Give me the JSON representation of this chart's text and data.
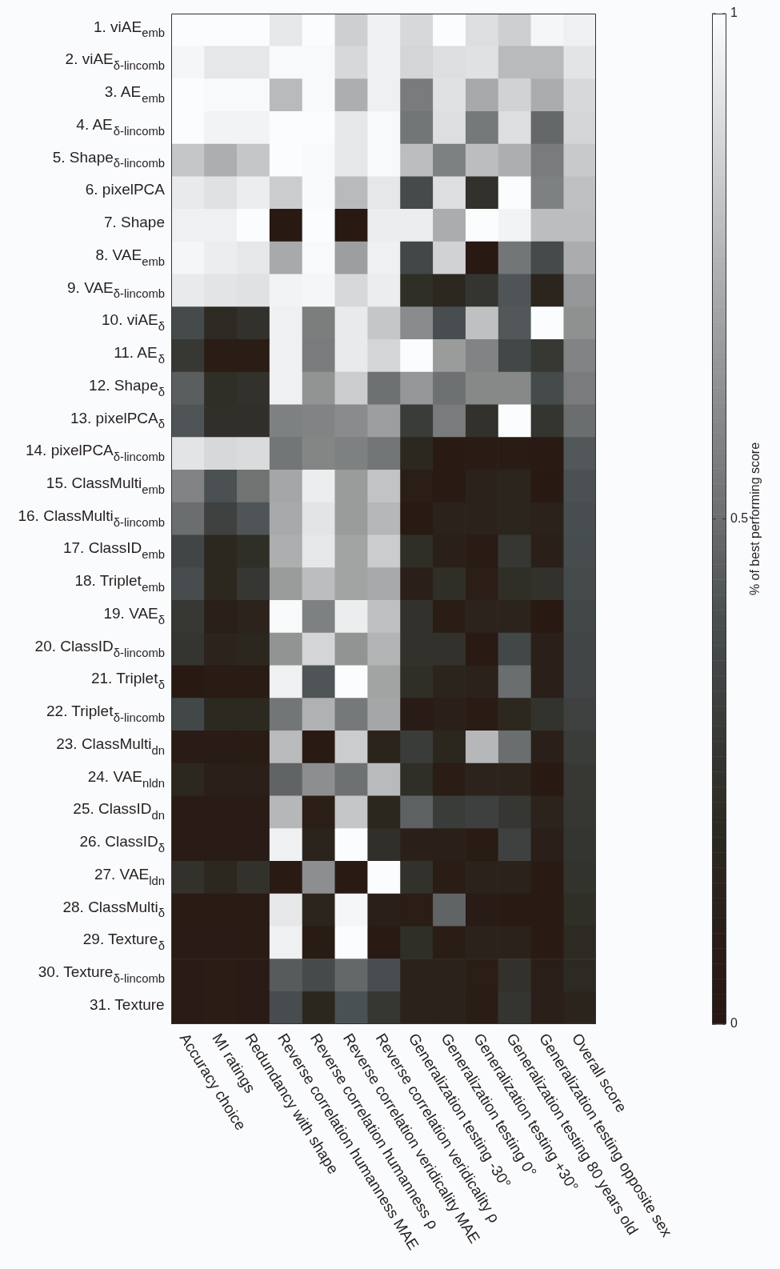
{
  "chart_data": {
    "type": "heatmap",
    "clabel": "% of best performing score",
    "clim": [
      0,
      1
    ],
    "cticks": [
      0,
      0.5,
      1
    ],
    "categories": [
      "Accuracy choice",
      "MI ratings",
      "Redundancy with shape",
      "Reverse correlation humanness MAE",
      "Reverse correlation humanness ρ",
      "Reverse correlation veridicality MAE",
      "Reverse correlation veridicality ρ",
      "Generalization testing -30°",
      "Generalization testing 0°",
      "Generalization testing +30°",
      "Generalization testing 80 years old",
      "Generalization testing opposite sex",
      "Overall score"
    ],
    "y_categories": [
      "1. viAE$_{emb}$",
      "2. viAE$_{δ-lincomb}$",
      "3. AE$_{emb}$",
      "4. AE$_{δ-lincomb}$",
      "5. Shape$_{δ-lincomb}$",
      "6. pixelPCA",
      "7. Shape",
      "8. VAE$_{emb}$",
      "9. VAE$_{δ-lincomb}$",
      "10. viAE$_{δ}$",
      "11. AE$_{δ}$",
      "12. Shape$_{δ}$",
      "13. pixelPCA$_{δ}$",
      "14. pixelPCA$_{δ-lincomb}$",
      "15. ClassMulti$_{emb}$",
      "16. ClassMulti$_{δ-lincomb}$",
      "17. ClassID$_{emb}$",
      "18. Triplet$_{emb}$",
      "19. VAE$_{δ}$",
      "20. ClassID$_{δ-lincomb}$",
      "21. Triplet$_{δ}$",
      "22. Triplet$_{δ-lincomb}$",
      "23. ClassMulti$_{dn}$",
      "24. VAE$_{nldn}$",
      "25. ClassID$_{dn}$",
      "26. ClassID$_{δ}$",
      "27. VAE$_{ldn}$",
      "28. ClassMulti$_{δ}$",
      "29. Texture$_{δ}$",
      "30. Texture$_{δ-lincomb}$",
      "31. Texture"
    ],
    "cells": [
      [
        1,
        1,
        1,
        0.93,
        1,
        0.85,
        0.96,
        0.88,
        1,
        0.9,
        0.85,
        0.98,
        0.96
      ],
      [
        0.98,
        0.93,
        0.93,
        0.99,
        0.99,
        0.88,
        0.96,
        0.87,
        0.9,
        0.91,
        0.78,
        0.78,
        0.92
      ],
      [
        1,
        0.99,
        0.99,
        0.78,
        0.99,
        0.74,
        0.96,
        0.55,
        0.91,
        0.72,
        0.86,
        0.73,
        0.88
      ],
      [
        1,
        0.97,
        0.97,
        1,
        1,
        0.93,
        0.99,
        0.53,
        0.9,
        0.54,
        0.9,
        0.48,
        0.87
      ],
      [
        0.82,
        0.74,
        0.82,
        1,
        0.99,
        0.93,
        0.99,
        0.79,
        0.57,
        0.79,
        0.74,
        0.55,
        0.83
      ],
      [
        0.94,
        0.91,
        0.95,
        0.84,
        0.99,
        0.78,
        0.93,
        0.38,
        0.9,
        0.24,
        1,
        0.57,
        0.8
      ],
      [
        0.96,
        0.96,
        1,
        0.03,
        1,
        0.03,
        0.95,
        0.95,
        0.73,
        1,
        0.97,
        0.79,
        0.79
      ],
      [
        0.98,
        0.95,
        0.93,
        0.72,
        0.99,
        0.68,
        0.96,
        0.36,
        0.86,
        0.03,
        0.53,
        0.38,
        0.73
      ],
      [
        0.94,
        0.92,
        0.91,
        0.97,
        0.98,
        0.88,
        0.95,
        0.22,
        0.18,
        0.26,
        0.42,
        0.15,
        0.65
      ],
      [
        0.38,
        0.2,
        0.24,
        0.96,
        0.56,
        0.94,
        0.82,
        0.61,
        0.4,
        0.8,
        0.43,
        1,
        0.63
      ],
      [
        0.28,
        0.07,
        0.07,
        0.96,
        0.55,
        0.94,
        0.87,
        1,
        0.67,
        0.58,
        0.36,
        0.28,
        0.58
      ],
      [
        0.45,
        0.22,
        0.24,
        0.96,
        0.64,
        0.84,
        0.51,
        0.65,
        0.51,
        0.6,
        0.6,
        0.38,
        0.55
      ],
      [
        0.42,
        0.23,
        0.23,
        0.57,
        0.58,
        0.61,
        0.68,
        0.3,
        0.55,
        0.24,
        1,
        0.26,
        0.5
      ],
      [
        0.92,
        0.88,
        0.89,
        0.53,
        0.59,
        0.57,
        0.53,
        0.18,
        0.04,
        0.06,
        0.06,
        0.04,
        0.43
      ],
      [
        0.58,
        0.41,
        0.52,
        0.71,
        0.95,
        0.67,
        0.81,
        0.08,
        0.04,
        0.12,
        0.15,
        0.03,
        0.41
      ],
      [
        0.5,
        0.33,
        0.42,
        0.72,
        0.92,
        0.67,
        0.77,
        0.04,
        0.12,
        0.12,
        0.15,
        0.12,
        0.4
      ],
      [
        0.35,
        0.18,
        0.22,
        0.74,
        0.93,
        0.7,
        0.84,
        0.22,
        0.1,
        0.06,
        0.27,
        0.1,
        0.39
      ],
      [
        0.39,
        0.18,
        0.27,
        0.67,
        0.79,
        0.7,
        0.72,
        0.1,
        0.22,
        0.08,
        0.22,
        0.24,
        0.38
      ],
      [
        0.28,
        0.09,
        0.13,
        0.99,
        0.57,
        0.95,
        0.8,
        0.24,
        0.07,
        0.13,
        0.13,
        0.03,
        0.36
      ],
      [
        0.26,
        0.13,
        0.17,
        0.64,
        0.87,
        0.64,
        0.76,
        0.24,
        0.24,
        0.04,
        0.36,
        0.1,
        0.35
      ],
      [
        0.03,
        0.06,
        0.06,
        0.96,
        0.42,
        1,
        0.7,
        0.22,
        0.14,
        0.12,
        0.5,
        0.1,
        0.35
      ],
      [
        0.36,
        0.19,
        0.19,
        0.53,
        0.75,
        0.54,
        0.71,
        0.05,
        0.1,
        0.06,
        0.18,
        0.25,
        0.33
      ],
      [
        0.05,
        0.05,
        0.06,
        0.78,
        0.04,
        0.84,
        0.14,
        0.3,
        0.16,
        0.77,
        0.5,
        0.1,
        0.3
      ],
      [
        0.18,
        0.1,
        0.1,
        0.47,
        0.62,
        0.51,
        0.78,
        0.22,
        0.07,
        0.13,
        0.13,
        0.03,
        0.28
      ],
      [
        0.05,
        0.05,
        0.05,
        0.77,
        0.08,
        0.82,
        0.16,
        0.46,
        0.3,
        0.32,
        0.27,
        0.13,
        0.27
      ],
      [
        0.05,
        0.05,
        0.05,
        0.96,
        0.14,
        1,
        0.23,
        0.1,
        0.1,
        0.06,
        0.33,
        0.1,
        0.26
      ],
      [
        0.24,
        0.18,
        0.24,
        0.04,
        0.62,
        0.04,
        1,
        0.24,
        0.07,
        0.12,
        0.12,
        0.04,
        0.25
      ],
      [
        0.06,
        0.06,
        0.06,
        0.93,
        0.15,
        0.98,
        0.1,
        0.08,
        0.47,
        0.05,
        0.04,
        0.04,
        0.22
      ],
      [
        0.05,
        0.05,
        0.06,
        0.96,
        0.06,
        1,
        0.04,
        0.22,
        0.07,
        0.12,
        0.12,
        0.04,
        0.2
      ],
      [
        0.05,
        0.07,
        0.05,
        0.44,
        0.38,
        0.48,
        0.4,
        0.12,
        0.12,
        0.08,
        0.24,
        0.09,
        0.2
      ],
      [
        0.05,
        0.07,
        0.05,
        0.39,
        0.17,
        0.41,
        0.27,
        0.12,
        0.12,
        0.07,
        0.26,
        0.1,
        0.14
      ]
    ]
  }
}
